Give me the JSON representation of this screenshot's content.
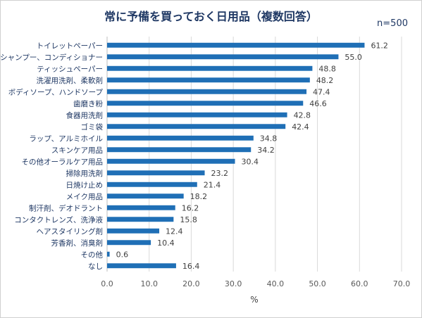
{
  "chart_data": {
    "type": "bar",
    "orientation": "horizontal",
    "title": "常に予備を買っておく日用品（複数回答）",
    "sample_note": "n=500",
    "xlabel": "%",
    "ylabel": "",
    "xlim": [
      0,
      70
    ],
    "xticks": [
      "0.0",
      "10.0",
      "20.0",
      "30.0",
      "40.0",
      "50.0",
      "60.0",
      "70.0"
    ],
    "grid": true,
    "bar_color": "#1f6fb6",
    "categories": [
      "トイレットペーパー",
      "シャンプー、コンディショナー",
      "ティッシュペーパー",
      "洗濯用洗剤、柔軟剤",
      "ボディソープ、ハンドソープ",
      "歯磨き粉",
      "食器用洗剤",
      "ゴミ袋",
      "ラップ、アルミホイル",
      "スキンケア用品",
      "その他オーラルケア用品",
      "掃除用洗剤",
      "日焼け止め",
      "メイク用品",
      "制汗剤、デオドラント",
      "コンタクトレンズ、洗浄液",
      "ヘアスタイリング剤",
      "芳香剤、消臭剤",
      "その他",
      "なし"
    ],
    "values": [
      61.2,
      55.0,
      48.8,
      48.2,
      47.4,
      46.6,
      42.8,
      42.4,
      34.8,
      34.2,
      30.4,
      23.2,
      21.4,
      18.2,
      16.2,
      15.8,
      12.4,
      10.4,
      0.6,
      16.4
    ],
    "value_labels": [
      "61.2",
      "55.0",
      "48.8",
      "48.2",
      "47.4",
      "46.6",
      "42.8",
      "42.4",
      "34.8",
      "34.2",
      "30.4",
      "23.2",
      "21.4",
      "18.2",
      "16.2",
      "15.8",
      "12.4",
      "10.4",
      "0.6",
      "16.4"
    ]
  }
}
